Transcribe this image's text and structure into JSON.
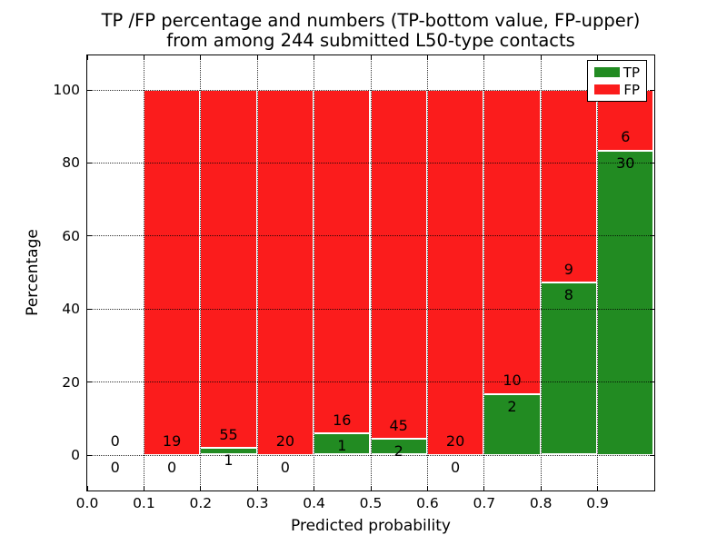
{
  "chart_data": {
    "type": "bar",
    "stacked": true,
    "title_line1": "TP /FP percentage and numbers (TP-bottom value, FP-upper)",
    "title_line2": "from among 244 submitted L50-type contacts",
    "xlabel": "Predicted probability",
    "ylabel": "Percentage",
    "bar_unit": "percentage of bin total (TP% bottom, FP% stacked above to 100)",
    "series": [
      {
        "name": "TP",
        "color": "#228b22"
      },
      {
        "name": "FP",
        "color": "#fb1c1c"
      }
    ],
    "bins": [
      {
        "x_start": 0.0,
        "x_end": 0.1,
        "tp": 0,
        "fp": 0
      },
      {
        "x_start": 0.1,
        "x_end": 0.2,
        "tp": 0,
        "fp": 19
      },
      {
        "x_start": 0.2,
        "x_end": 0.3,
        "tp": 1,
        "fp": 55
      },
      {
        "x_start": 0.3,
        "x_end": 0.4,
        "tp": 0,
        "fp": 20
      },
      {
        "x_start": 0.4,
        "x_end": 0.5,
        "tp": 1,
        "fp": 16
      },
      {
        "x_start": 0.5,
        "x_end": 0.6,
        "tp": 2,
        "fp": 45
      },
      {
        "x_start": 0.6,
        "x_end": 0.7,
        "tp": 0,
        "fp": 20
      },
      {
        "x_start": 0.7,
        "x_end": 0.8,
        "tp": 2,
        "fp": 10
      },
      {
        "x_start": 0.8,
        "x_end": 0.9,
        "tp": 8,
        "fp": 9
      },
      {
        "x_start": 0.9,
        "x_end": 1.0,
        "tp": 30,
        "fp": 6
      }
    ],
    "x_ticks": [
      "0.0",
      "0.1",
      "0.2",
      "0.3",
      "0.4",
      "0.5",
      "0.6",
      "0.7",
      "0.8",
      "0.9"
    ],
    "y_ticks": [
      "0",
      "20",
      "40",
      "60",
      "80",
      "100"
    ],
    "xlim": [
      0.0,
      1.0
    ],
    "ylim": [
      -10,
      110
    ],
    "grid": "dotted both axes, drawn over bars",
    "legend_position": "upper right"
  }
}
